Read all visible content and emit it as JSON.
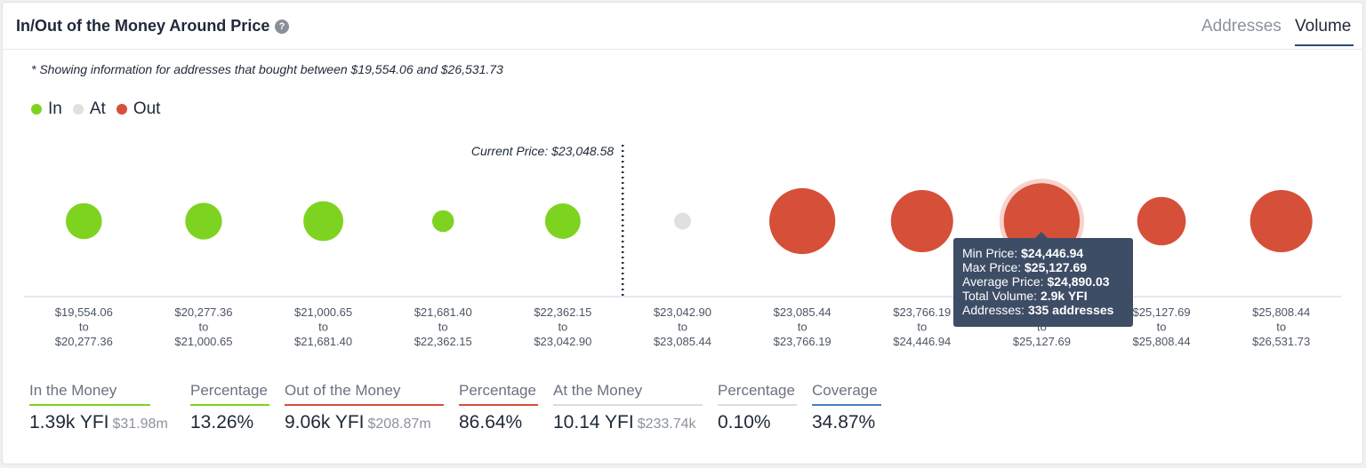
{
  "header": {
    "title": "In/Out of the Money Around Price",
    "help_icon": "question-circle-icon",
    "tabs": [
      {
        "label": "Addresses",
        "active": false
      },
      {
        "label": "Volume",
        "active": true
      }
    ]
  },
  "note": "* Showing information for addresses that bought between $19,554.06 and $26,531.73",
  "legend": [
    {
      "label": "In",
      "color": "#7ed321"
    },
    {
      "label": "At",
      "color": "#e0e0e0"
    },
    {
      "label": "Out",
      "color": "#d64f39"
    }
  ],
  "chart_data": {
    "type": "scatter",
    "title": "",
    "current_price_label": "Current Price: $23,048.58",
    "current_price_after_index": 4,
    "ranges": [
      {
        "from": "$19,554.06",
        "to_word": "to",
        "to": "$20,277.36",
        "status": "in",
        "size": 0.58
      },
      {
        "from": "$20,277.36",
        "to_word": "to",
        "to": "$21,000.65",
        "status": "in",
        "size": 0.59
      },
      {
        "from": "$21,000.65",
        "to_word": "to",
        "to": "$21,681.40",
        "status": "in",
        "size": 0.64
      },
      {
        "from": "$21,681.40",
        "to_word": "to",
        "to": "$22,362.15",
        "status": "in",
        "size": 0.35
      },
      {
        "from": "$22,362.15",
        "to_word": "to",
        "to": "$23,042.90",
        "status": "in",
        "size": 0.57
      },
      {
        "from": "$23,042.90",
        "to_word": "to",
        "to": "$23,085.44",
        "status": "at",
        "size": 0.27
      },
      {
        "from": "$23,085.44",
        "to_word": "to",
        "to": "$23,766.19",
        "status": "out",
        "size": 1.06
      },
      {
        "from": "$23,766.19",
        "to_word": "to",
        "to": "$24,446.94",
        "status": "out",
        "size": 1.0
      },
      {
        "from": "$24,446.94",
        "to_word": "to",
        "to": "$25,127.69",
        "status": "out",
        "size": 1.22,
        "highlighted": true
      },
      {
        "from": "$25,127.69",
        "to_word": "to",
        "to": "$25,808.44",
        "status": "out",
        "size": 0.78
      },
      {
        "from": "$25,808.44",
        "to_word": "to",
        "to": "$26,531.73",
        "status": "out",
        "size": 1.0
      }
    ]
  },
  "tooltip": {
    "min_label": "Min Price:",
    "min_value": "$24,446.94",
    "max_label": "Max Price:",
    "max_value": "$25,127.69",
    "avg_label": "Average Price:",
    "avg_value": "$24,890.03",
    "vol_label": "Total Volume:",
    "vol_value": "2.9k YFI",
    "addr_label": "Addresses:",
    "addr_value": "335 addresses"
  },
  "stats": [
    {
      "label": "In the Money",
      "value": "1.39k YFI",
      "sub": "$31.98m",
      "color": "#7ed321"
    },
    {
      "label": "Percentage",
      "value": "13.26%",
      "sub": "",
      "color": "#7ed321"
    },
    {
      "label": "Out of the Money",
      "value": "9.06k YFI",
      "sub": "$208.87m",
      "color": "#d64f39"
    },
    {
      "label": "Percentage",
      "value": "86.64%",
      "sub": "",
      "color": "#d64f39"
    },
    {
      "label": "At the Money",
      "value": "10.14 YFI",
      "sub": "$233.74k",
      "color": "#d9dde2"
    },
    {
      "label": "Percentage",
      "value": "0.10%",
      "sub": "",
      "color": "#d9dde2"
    },
    {
      "label": "Coverage",
      "value": "34.87%",
      "sub": "",
      "color": "#4a7fc1"
    }
  ]
}
